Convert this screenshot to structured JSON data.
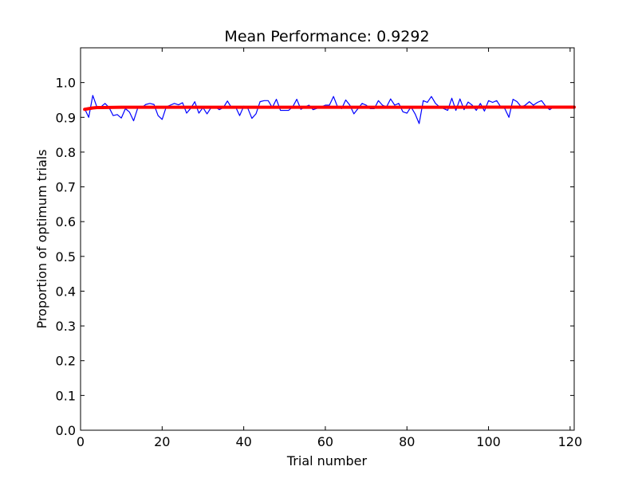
{
  "chart_data": {
    "type": "line",
    "title": "Mean Performance: 0.9292",
    "xlabel": "Trial number",
    "ylabel": "Proportion of optimum trials",
    "xlim": [
      0,
      121
    ],
    "ylim": [
      0.0,
      1.1
    ],
    "xticks": [
      0,
      20,
      40,
      60,
      80,
      100,
      120
    ],
    "xtick_labels": [
      "0",
      "20",
      "40",
      "60",
      "80",
      "100",
      "120"
    ],
    "yticks": [
      0.0,
      0.1,
      0.2,
      0.3,
      0.4,
      0.5,
      0.6,
      0.7,
      0.8,
      0.9,
      1.0
    ],
    "ytick_labels": [
      "0.0",
      "0.1",
      "0.2",
      "0.3",
      "0.4",
      "0.5",
      "0.6",
      "0.7",
      "0.8",
      "0.9",
      "1.0"
    ],
    "grid": false,
    "series": [
      {
        "color": "#0000ff",
        "linewidth": "thin",
        "x": [
          1,
          2,
          3,
          4,
          5,
          6,
          7,
          8,
          9,
          10,
          11,
          12,
          13,
          14,
          15,
          16,
          17,
          18,
          19,
          20,
          21,
          22,
          23,
          24,
          25,
          26,
          27,
          28,
          29,
          30,
          31,
          32,
          33,
          34,
          35,
          36,
          37,
          38,
          39,
          40,
          41,
          42,
          43,
          44,
          45,
          46,
          47,
          48,
          49,
          50,
          51,
          52,
          53,
          54,
          55,
          56,
          57,
          58,
          59,
          60,
          61,
          62,
          63,
          64,
          65,
          66,
          67,
          68,
          69,
          70,
          71,
          72,
          73,
          74,
          75,
          76,
          77,
          78,
          79,
          80,
          81,
          82,
          83,
          84,
          85,
          86,
          87,
          88,
          89,
          90,
          91,
          92,
          93,
          94,
          95,
          96,
          97,
          98,
          99,
          100,
          101,
          102,
          103,
          104,
          105,
          106,
          107,
          108,
          109,
          110,
          111,
          112,
          113,
          114,
          115,
          116,
          117,
          118,
          119,
          120,
          121
        ],
        "y": [
          0.925,
          0.9,
          0.963,
          0.93,
          0.93,
          0.94,
          0.928,
          0.905,
          0.908,
          0.898,
          0.925,
          0.915,
          0.89,
          0.926,
          0.928,
          0.937,
          0.94,
          0.937,
          0.905,
          0.894,
          0.93,
          0.935,
          0.94,
          0.936,
          0.942,
          0.912,
          0.926,
          0.945,
          0.912,
          0.928,
          0.91,
          0.928,
          0.93,
          0.922,
          0.928,
          0.947,
          0.928,
          0.93,
          0.905,
          0.932,
          0.926,
          0.897,
          0.91,
          0.945,
          0.948,
          0.948,
          0.928,
          0.952,
          0.92,
          0.92,
          0.92,
          0.93,
          0.952,
          0.923,
          0.93,
          0.935,
          0.922,
          0.926,
          0.93,
          0.935,
          0.935,
          0.96,
          0.93,
          0.925,
          0.95,
          0.935,
          0.91,
          0.925,
          0.94,
          0.935,
          0.925,
          0.925,
          0.948,
          0.935,
          0.93,
          0.953,
          0.935,
          0.94,
          0.916,
          0.912,
          0.93,
          0.91,
          0.882,
          0.948,
          0.943,
          0.96,
          0.94,
          0.93,
          0.925,
          0.92,
          0.955,
          0.92,
          0.953,
          0.922,
          0.944,
          0.935,
          0.92,
          0.94,
          0.918,
          0.948,
          0.943,
          0.948,
          0.93,
          0.925,
          0.9,
          0.952,
          0.945,
          0.93,
          0.935,
          0.945,
          0.935,
          0.943,
          0.948,
          0.932,
          0.922,
          0.93,
          0.93,
          0.93,
          0.93,
          0.93,
          0.93
        ]
      },
      {
        "color": "#ff0000",
        "linewidth": "thick",
        "x": [
          1,
          2,
          3,
          4,
          5,
          10,
          20,
          30,
          40,
          50,
          60,
          70,
          80,
          90,
          100,
          110,
          121
        ],
        "y": [
          0.923,
          0.925,
          0.927,
          0.928,
          0.928,
          0.929,
          0.929,
          0.929,
          0.929,
          0.929,
          0.929,
          0.929,
          0.929,
          0.929,
          0.9292,
          0.9292,
          0.9292
        ]
      }
    ]
  }
}
